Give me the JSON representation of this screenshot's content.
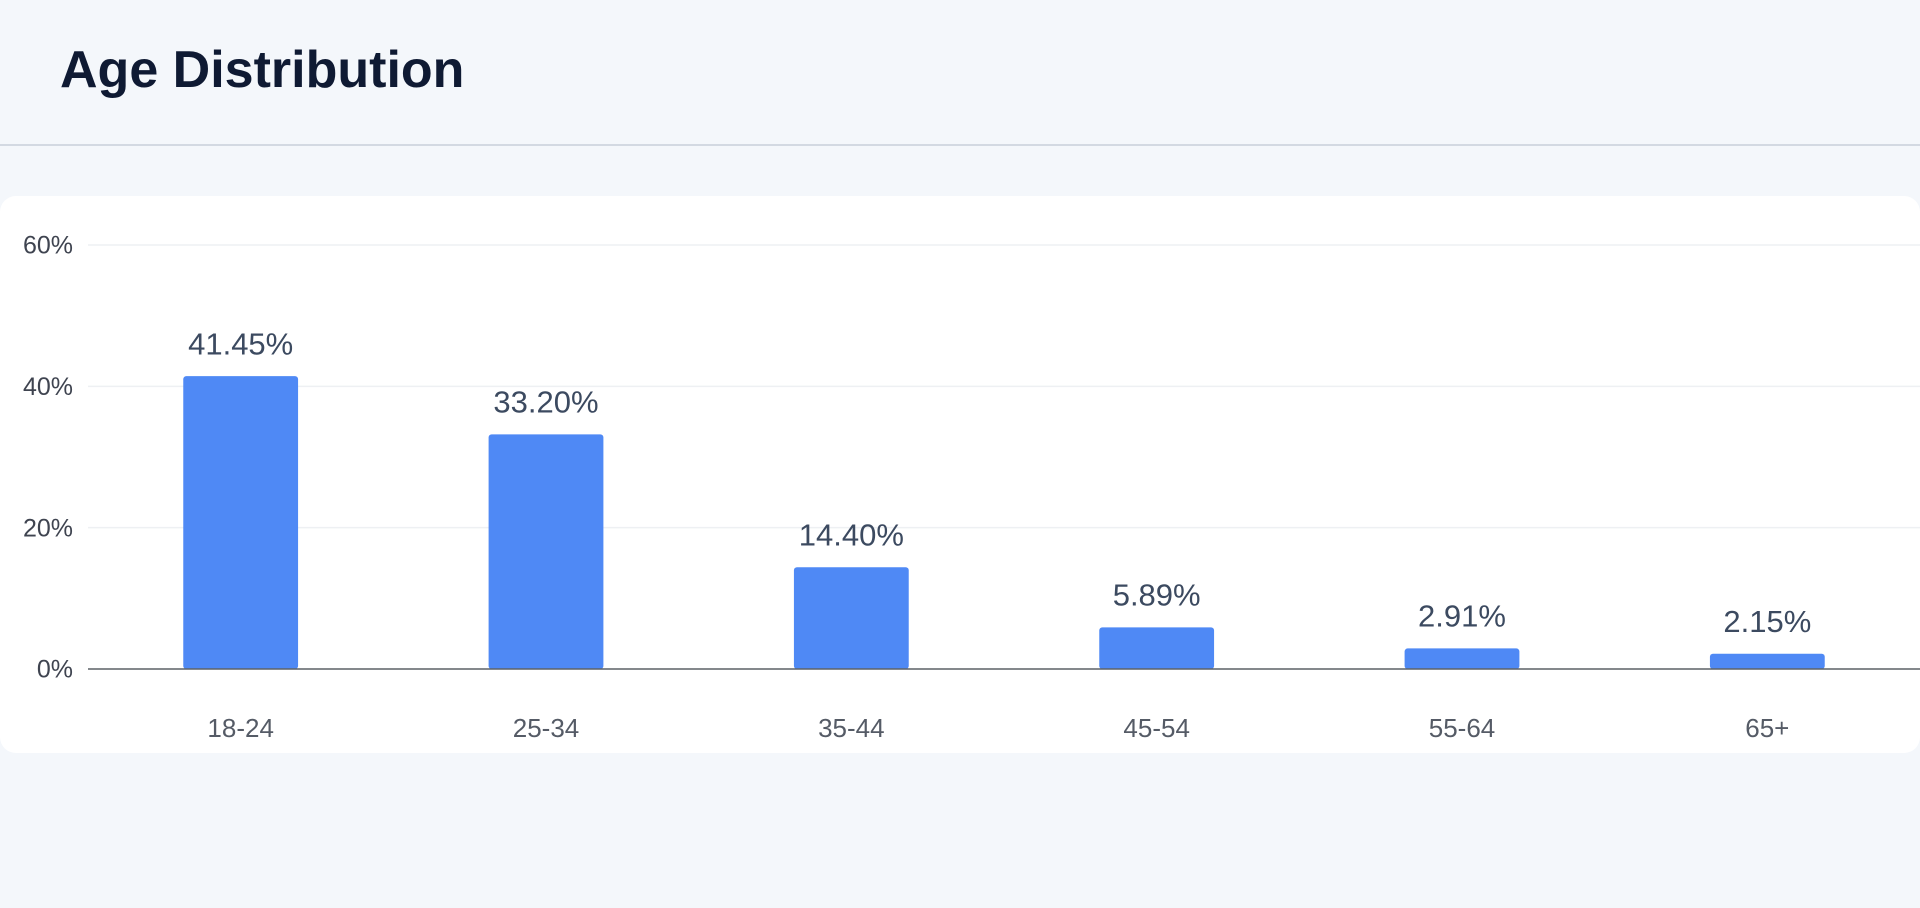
{
  "chart_data": {
    "type": "bar",
    "title": "Age Distribution",
    "categories": [
      "18-24",
      "25-34",
      "35-44",
      "45-54",
      "55-64",
      "65+"
    ],
    "values": [
      41.45,
      33.2,
      14.4,
      5.89,
      2.91,
      2.15
    ],
    "value_labels": [
      "41.45%",
      "33.20%",
      "14.40%",
      "5.89%",
      "2.91%",
      "2.15%"
    ],
    "color": "#4f89f5",
    "ylim": [
      0,
      60
    ],
    "yticks": [
      {
        "value": 0,
        "label": "0%"
      },
      {
        "value": 20,
        "label": "20%"
      },
      {
        "value": 40,
        "label": "40%"
      },
      {
        "value": 60,
        "label": "60%"
      }
    ],
    "grid": true
  }
}
